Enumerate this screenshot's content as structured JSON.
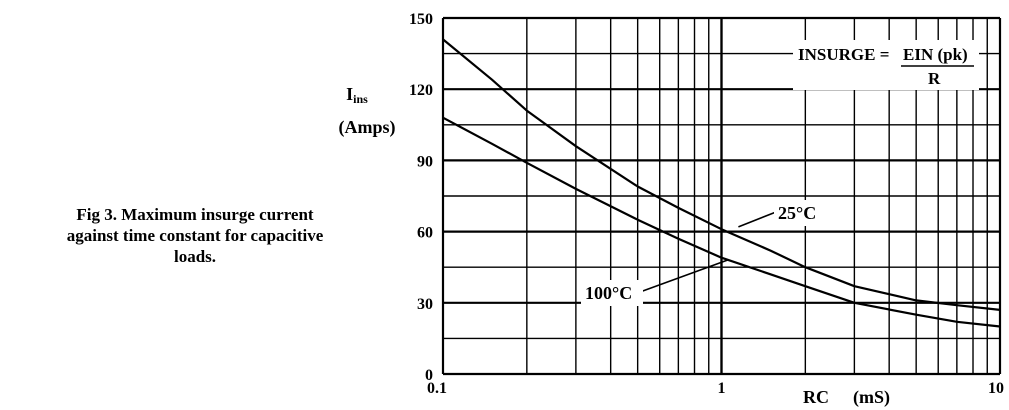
{
  "caption": {
    "line1": "Fig 3.  Maximum insurge current",
    "line2": "against time constant for capacitive",
    "line3": "loads."
  },
  "chart_data": {
    "type": "line",
    "title": "",
    "xlabel": "RC",
    "xunit": "(mS)",
    "ylabel": "I",
    "ylabel_sub": "ins",
    "yunit": "(Amps)",
    "xscale": "log",
    "xlim": [
      0.1,
      10
    ],
    "ylim": [
      0,
      150
    ],
    "x_ticks": [
      0.1,
      1,
      10
    ],
    "x_tick_labels": [
      "0.1",
      "1",
      "10"
    ],
    "y_ticks": [
      0,
      30,
      60,
      90,
      120,
      150
    ],
    "y_tick_labels": [
      "0",
      "30",
      "60",
      "90",
      "120",
      "150"
    ],
    "grid": true,
    "series": [
      {
        "name": "25°C",
        "x": [
          0.1,
          0.15,
          0.2,
          0.3,
          0.5,
          0.7,
          1,
          1.5,
          2,
          3,
          5,
          7,
          10
        ],
        "y": [
          141,
          124,
          111,
          96,
          79,
          70,
          61,
          52,
          45,
          37,
          31,
          29,
          27
        ]
      },
      {
        "name": "100°C",
        "x": [
          0.1,
          0.15,
          0.2,
          0.3,
          0.5,
          0.7,
          1,
          1.5,
          2,
          3,
          5,
          7,
          10
        ],
        "y": [
          108,
          97,
          89,
          78,
          65,
          57,
          49,
          42,
          37,
          30,
          25,
          22,
          20
        ]
      }
    ],
    "annotations": [
      {
        "label": "25°C",
        "target_x": 1.15,
        "target_y": 62
      },
      {
        "label": "100°C",
        "target_x": 1.05,
        "target_y": 48
      }
    ],
    "formula": {
      "lhs": "INSURGE =",
      "numerator": "EIN (pk)",
      "denominator": "R"
    }
  }
}
